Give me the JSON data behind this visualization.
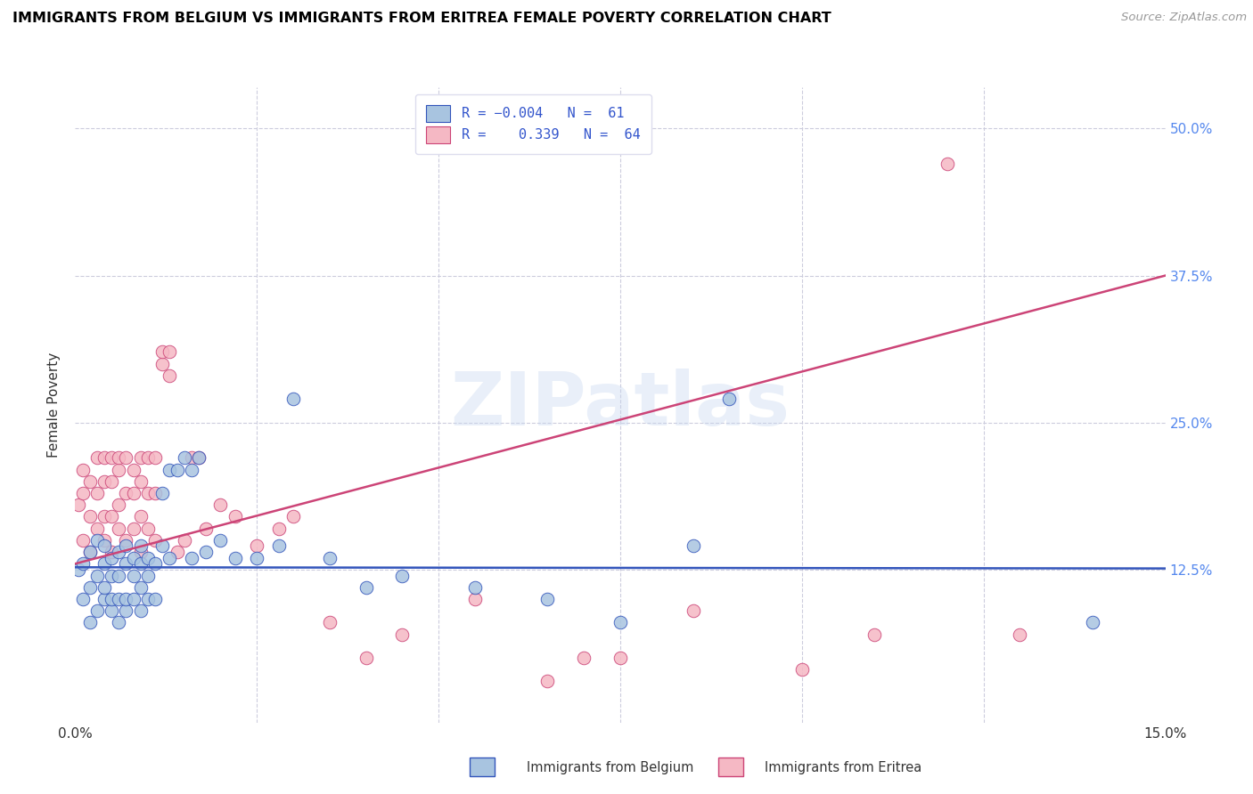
{
  "title": "IMMIGRANTS FROM BELGIUM VS IMMIGRANTS FROM ERITREA FEMALE POVERTY CORRELATION CHART",
  "source": "Source: ZipAtlas.com",
  "ylabel": "Female Poverty",
  "yticks_labels": [
    "50.0%",
    "37.5%",
    "25.0%",
    "12.5%"
  ],
  "ytick_vals": [
    0.5,
    0.375,
    0.25,
    0.125
  ],
  "xlim": [
    0.0,
    0.15
  ],
  "ylim": [
    -0.005,
    0.535
  ],
  "color_belgium": "#A8C4E0",
  "color_eritrea": "#F5B8C4",
  "line_color_belgium": "#3355BB",
  "line_color_eritrea": "#CC4477",
  "watermark": "ZIPatlas",
  "belgium_scatter_x": [
    0.0005,
    0.001,
    0.001,
    0.002,
    0.002,
    0.002,
    0.003,
    0.003,
    0.003,
    0.004,
    0.004,
    0.004,
    0.004,
    0.005,
    0.005,
    0.005,
    0.005,
    0.006,
    0.006,
    0.006,
    0.006,
    0.007,
    0.007,
    0.007,
    0.007,
    0.008,
    0.008,
    0.008,
    0.009,
    0.009,
    0.009,
    0.009,
    0.01,
    0.01,
    0.01,
    0.011,
    0.011,
    0.012,
    0.012,
    0.013,
    0.013,
    0.014,
    0.015,
    0.016,
    0.016,
    0.017,
    0.018,
    0.02,
    0.022,
    0.025,
    0.028,
    0.03,
    0.035,
    0.04,
    0.045,
    0.055,
    0.065,
    0.075,
    0.085,
    0.09,
    0.14
  ],
  "belgium_scatter_y": [
    0.125,
    0.1,
    0.13,
    0.08,
    0.11,
    0.14,
    0.09,
    0.12,
    0.15,
    0.1,
    0.11,
    0.13,
    0.145,
    0.09,
    0.1,
    0.12,
    0.135,
    0.08,
    0.1,
    0.12,
    0.14,
    0.09,
    0.1,
    0.13,
    0.145,
    0.1,
    0.12,
    0.135,
    0.09,
    0.11,
    0.13,
    0.145,
    0.1,
    0.12,
    0.135,
    0.1,
    0.13,
    0.145,
    0.19,
    0.135,
    0.21,
    0.21,
    0.22,
    0.135,
    0.21,
    0.22,
    0.14,
    0.15,
    0.135,
    0.135,
    0.145,
    0.27,
    0.135,
    0.11,
    0.12,
    0.11,
    0.1,
    0.08,
    0.145,
    0.27,
    0.08
  ],
  "eritrea_scatter_x": [
    0.0005,
    0.001,
    0.001,
    0.001,
    0.002,
    0.002,
    0.002,
    0.003,
    0.003,
    0.003,
    0.004,
    0.004,
    0.004,
    0.004,
    0.005,
    0.005,
    0.005,
    0.005,
    0.006,
    0.006,
    0.006,
    0.006,
    0.007,
    0.007,
    0.007,
    0.008,
    0.008,
    0.008,
    0.009,
    0.009,
    0.009,
    0.009,
    0.01,
    0.01,
    0.01,
    0.011,
    0.011,
    0.011,
    0.012,
    0.012,
    0.013,
    0.013,
    0.014,
    0.015,
    0.016,
    0.017,
    0.018,
    0.02,
    0.022,
    0.025,
    0.028,
    0.03,
    0.035,
    0.04,
    0.045,
    0.055,
    0.065,
    0.07,
    0.075,
    0.085,
    0.1,
    0.11,
    0.12,
    0.13
  ],
  "eritrea_scatter_y": [
    0.18,
    0.15,
    0.19,
    0.21,
    0.14,
    0.17,
    0.2,
    0.16,
    0.19,
    0.22,
    0.15,
    0.17,
    0.2,
    0.22,
    0.14,
    0.17,
    0.2,
    0.22,
    0.16,
    0.18,
    0.21,
    0.22,
    0.15,
    0.19,
    0.22,
    0.16,
    0.19,
    0.21,
    0.14,
    0.17,
    0.2,
    0.22,
    0.16,
    0.19,
    0.22,
    0.15,
    0.19,
    0.22,
    0.3,
    0.31,
    0.29,
    0.31,
    0.14,
    0.15,
    0.22,
    0.22,
    0.16,
    0.18,
    0.17,
    0.145,
    0.16,
    0.17,
    0.08,
    0.05,
    0.07,
    0.1,
    0.03,
    0.05,
    0.05,
    0.09,
    0.04,
    0.07,
    0.47,
    0.07
  ],
  "belgium_line_x": [
    0.0,
    0.15
  ],
  "belgium_line_y": [
    0.127,
    0.126
  ],
  "eritrea_line_x": [
    0.0,
    0.15
  ],
  "eritrea_line_y": [
    0.13,
    0.375
  ]
}
